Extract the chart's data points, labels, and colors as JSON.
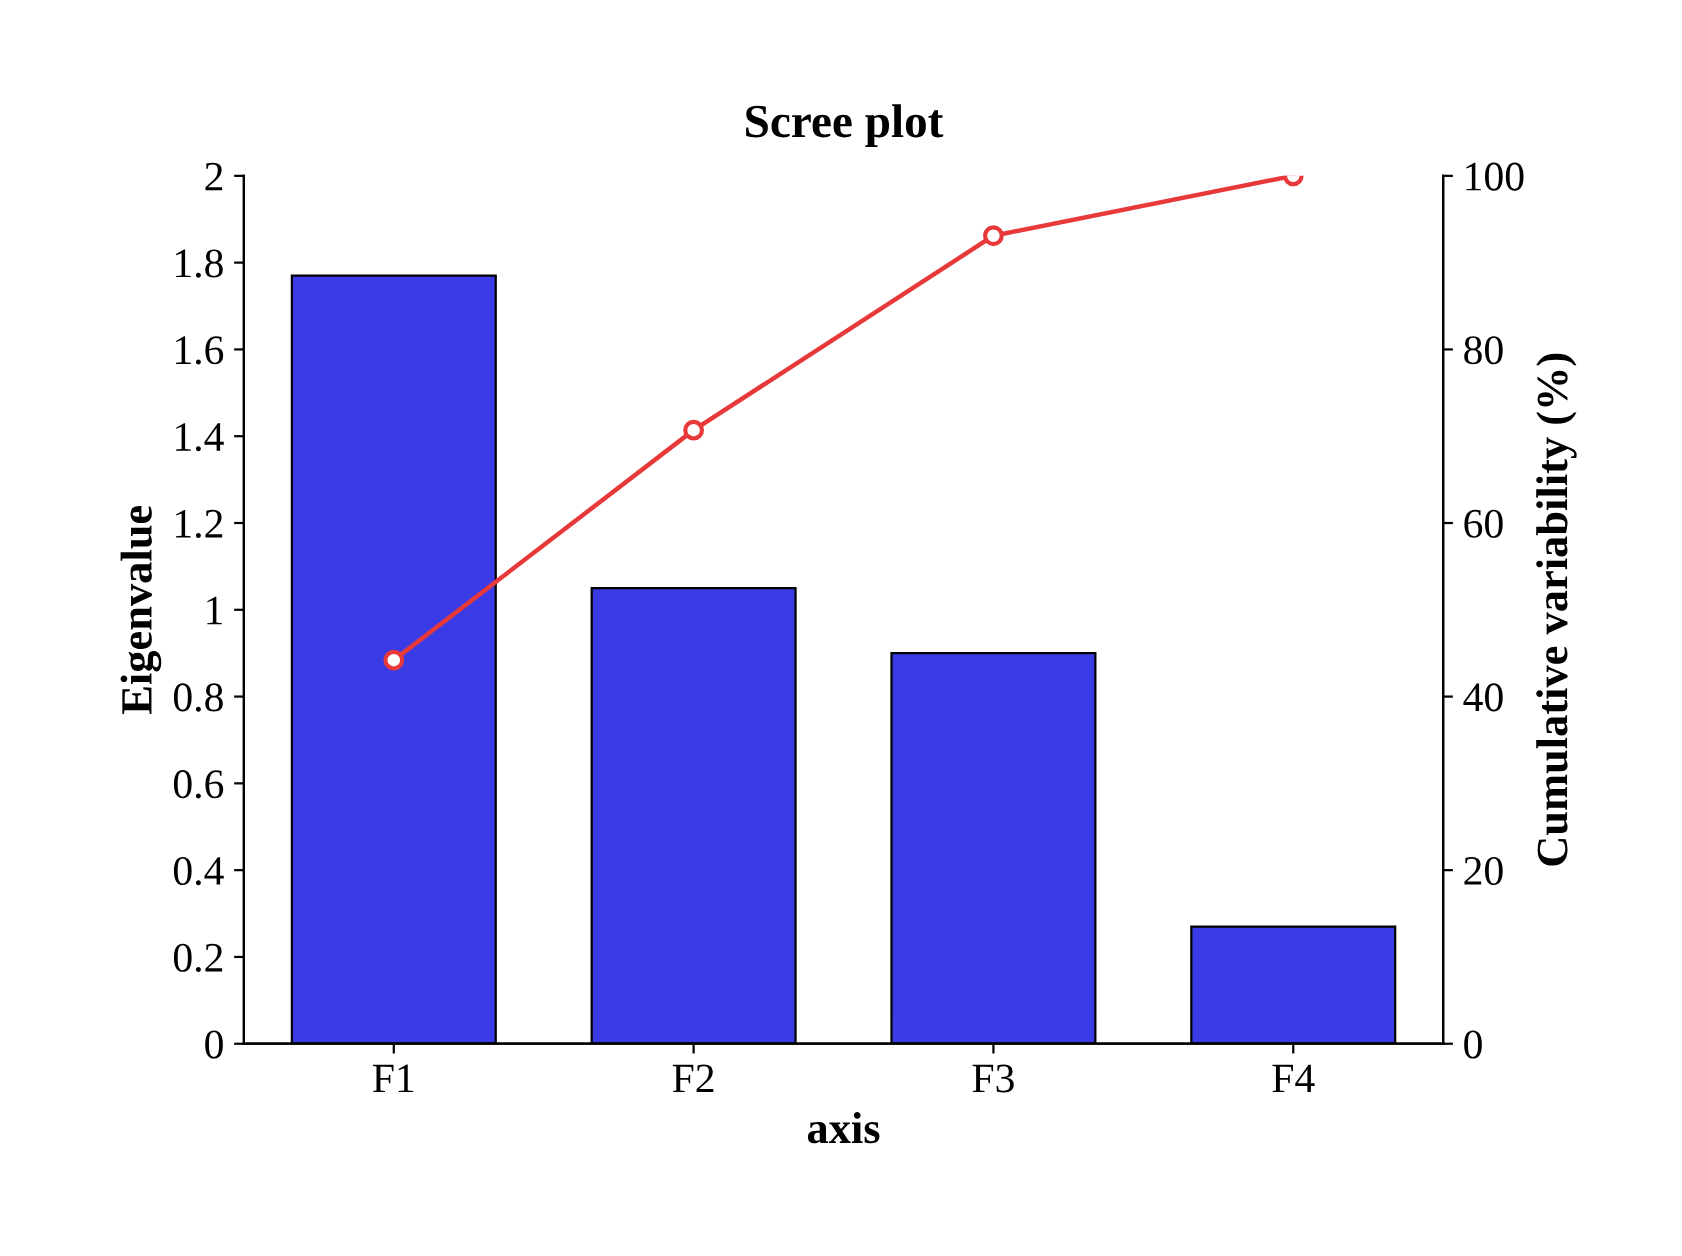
{
  "chart_data": {
    "type": "bar",
    "title": "Scree plot",
    "xlabel": "axis",
    "ylabel": "Eigenvalue",
    "y2label": "Cumulative variability (%)",
    "categories": [
      "F1",
      "F2",
      "F3",
      "F4"
    ],
    "series": [
      {
        "color": "#3b3be6",
        "values": [
          1.77,
          1.05,
          0.9,
          0.27
        ]
      },
      {
        "type": "line",
        "axis": "y2",
        "color": "#e8393a",
        "marker": "circle",
        "line_style": "solid",
        "values": [
          44.2,
          70.7,
          93.1,
          100
        ]
      }
    ],
    "ylim": [
      0,
      2
    ],
    "yticks": [
      0,
      0.2,
      0.4,
      0.6,
      0.8,
      1,
      1.2,
      1.4,
      1.6,
      1.8,
      2
    ],
    "y2lim": [
      0,
      100
    ],
    "y2ticks": [
      0,
      20,
      40,
      60,
      80,
      100
    ],
    "grid": false,
    "legend": false
  }
}
